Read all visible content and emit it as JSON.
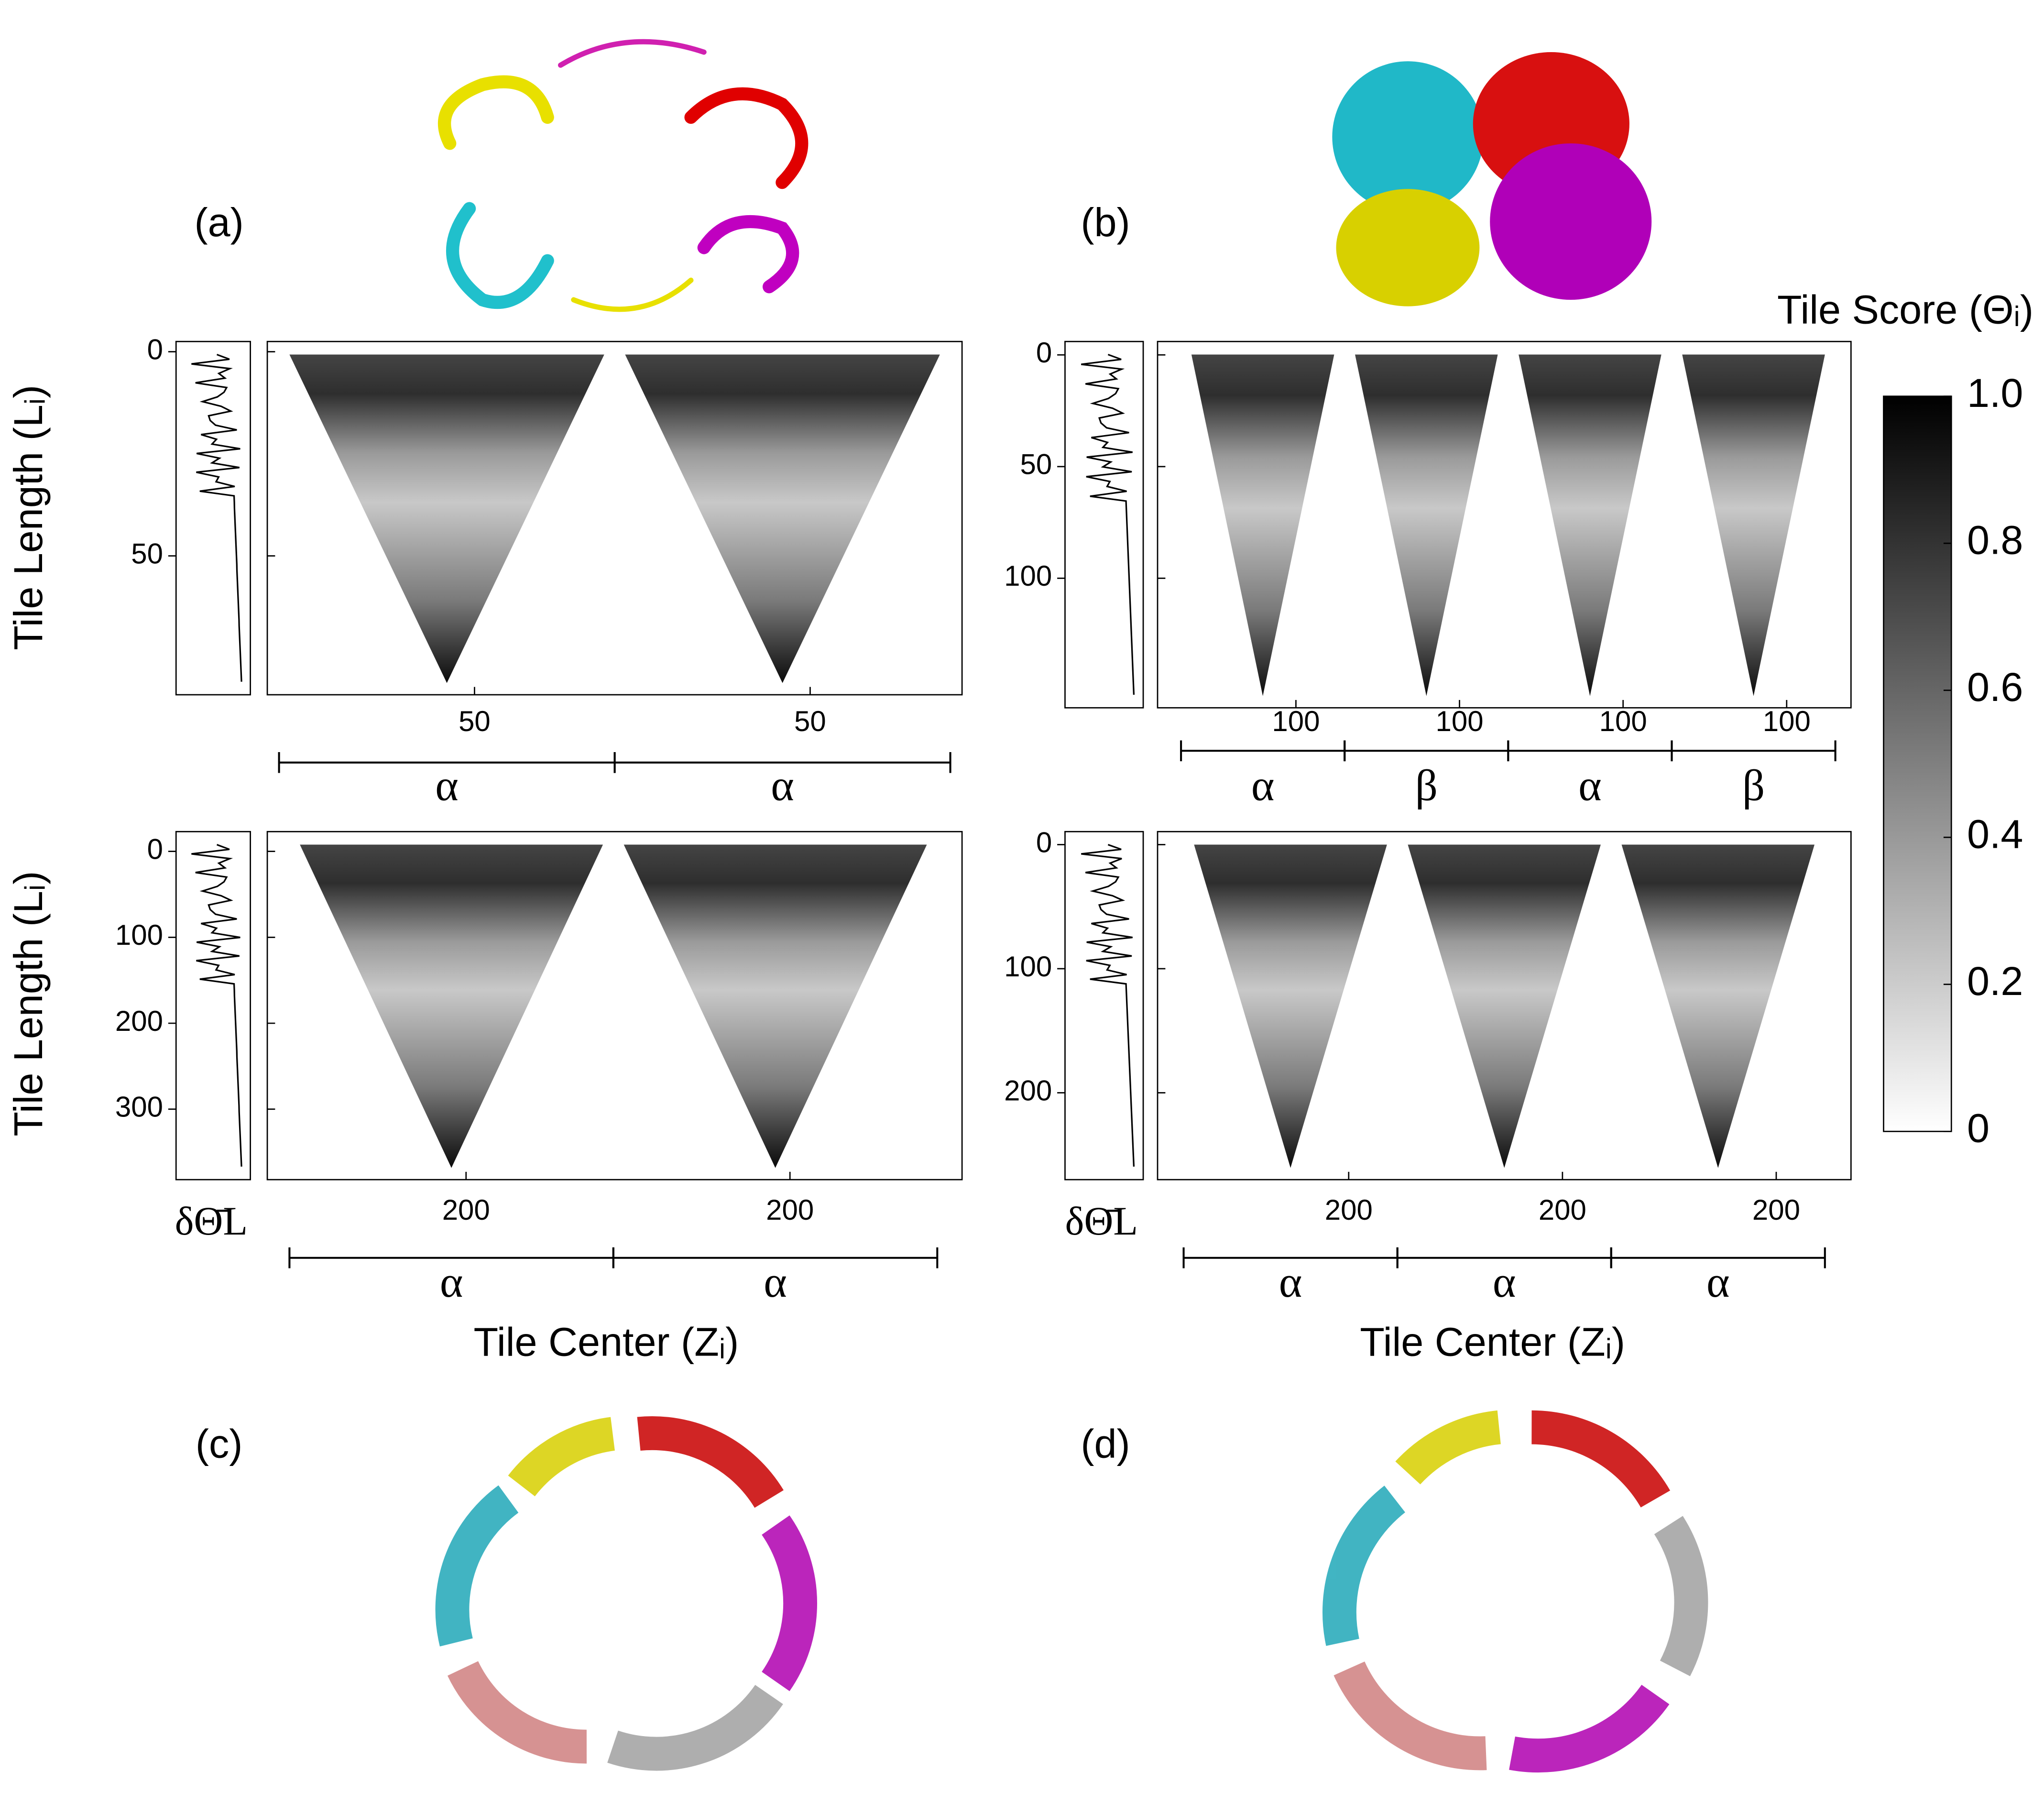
{
  "chart_data": [
    {
      "type": "heatmap",
      "panel_label": "(a)",
      "y_label": "Tile Length (Lᵢ)",
      "ylim": [
        -2.5,
        84
      ],
      "yticks": [
        0,
        50
      ],
      "xlim": [
        -3,
        88
      ],
      "xticks": [
        50
      ],
      "domains": [
        "α",
        "α"
      ]
    },
    {
      "type": "heatmap",
      "panel_label": "(b)",
      "ylim": [
        -6,
        158
      ],
      "yticks": [
        0,
        50,
        100
      ],
      "xlim": [
        -18,
        150
      ],
      "xticks": [
        100
      ],
      "domains": [
        "α",
        "β",
        "α",
        "β"
      ]
    },
    {
      "type": "heatmap",
      "panel_label": "(c)",
      "y_label": "Tile Length (Lᵢ)",
      "side_label": "δΘ̄L",
      "x_label": "Tile Center (Zᵢ)",
      "ylim": [
        -23,
        382
      ],
      "yticks": [
        0,
        100,
        200,
        300
      ],
      "xlim": [
        1,
        366
      ],
      "xticks": [
        200
      ],
      "domains": [
        "α",
        "α"
      ]
    },
    {
      "type": "heatmap",
      "panel_label": "(d)",
      "side_label": "δΘ̄L",
      "x_label": "Tile Center (Zᵢ)",
      "ylim": [
        -10.5,
        270
      ],
      "yticks": [
        0,
        100,
        200
      ],
      "xlim": [
        0,
        259
      ],
      "xticks": [
        200
      ],
      "domains": [
        "α",
        "α",
        "α"
      ]
    },
    {
      "type": "colorbar",
      "title": "Tile Score (Θᵢ)",
      "ylim": [
        0,
        1
      ],
      "yticks": [
        0,
        0.2,
        0.4,
        0.6,
        0.8,
        {
          "value": 1,
          "label": "1.0"
        }
      ],
      "colors": [
        "#ffffff",
        "#000000"
      ]
    }
  ]
}
